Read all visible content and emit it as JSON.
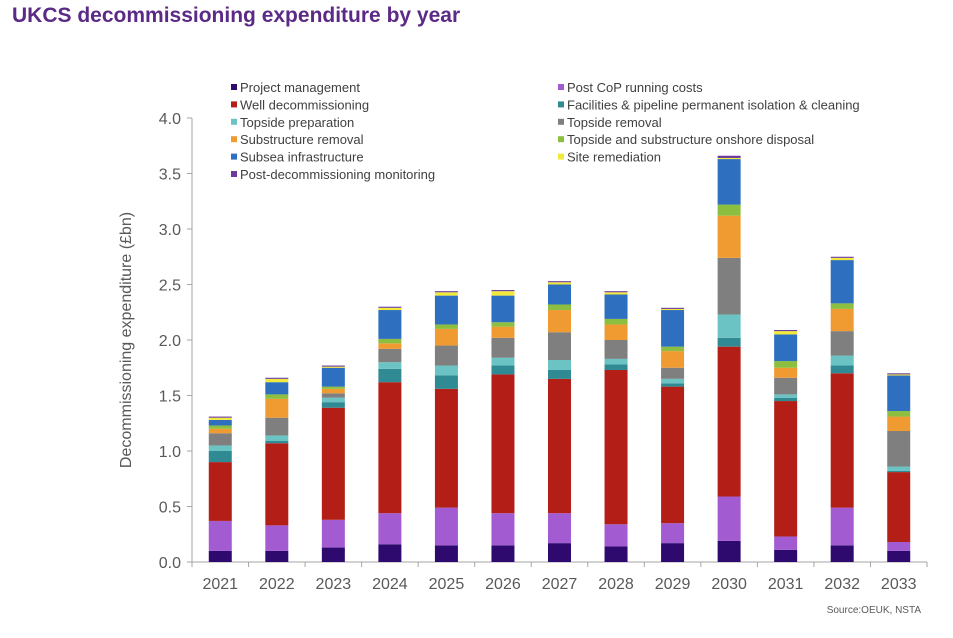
{
  "page": {
    "title": "UKCS decommissioning expenditure by year",
    "source": "Source:OEUK, NSTA"
  },
  "chart_data": {
    "type": "bar",
    "stacked": true,
    "title": "UKCS decommissioning expenditure by year",
    "xlabel": "",
    "ylabel": "Decommissioning expenditure (£bn)",
    "ylim": [
      0,
      4.0
    ],
    "yticks": [
      "0.0",
      "0.5",
      "1.0",
      "1.5",
      "2.0",
      "2.5",
      "3.0",
      "3.5",
      "4.0"
    ],
    "ytick_values": [
      0,
      0.5,
      1.0,
      1.5,
      2.0,
      2.5,
      3.0,
      3.5,
      4.0
    ],
    "grid": false,
    "legend_position": "top",
    "categories": [
      "2021",
      "2022",
      "2023",
      "2024",
      "2025",
      "2026",
      "2027",
      "2028",
      "2029",
      "2030",
      "2031",
      "2032",
      "2033"
    ],
    "series": [
      {
        "name": "Project management",
        "color": "#2e0a6e",
        "values": [
          0.1,
          0.1,
          0.13,
          0.16,
          0.15,
          0.15,
          0.17,
          0.14,
          0.17,
          0.19,
          0.11,
          0.15,
          0.1
        ]
      },
      {
        "name": "Post CoP running costs",
        "color": "#a35bd1",
        "values": [
          0.27,
          0.23,
          0.25,
          0.28,
          0.34,
          0.29,
          0.27,
          0.2,
          0.18,
          0.4,
          0.12,
          0.34,
          0.08
        ]
      },
      {
        "name": "Well decommissioning",
        "color": "#b31f16",
        "values": [
          0.53,
          0.74,
          1.01,
          1.18,
          1.07,
          1.25,
          1.21,
          1.39,
          1.23,
          1.35,
          1.22,
          1.21,
          0.63
        ]
      },
      {
        "name": "Facilities & pipeline permanent isolation & cleaning",
        "color": "#2f8a93",
        "values": [
          0.1,
          0.02,
          0.05,
          0.12,
          0.12,
          0.08,
          0.08,
          0.05,
          0.03,
          0.08,
          0.03,
          0.07,
          0.01
        ]
      },
      {
        "name": "Topside preparation",
        "color": "#6cc3c4",
        "values": [
          0.05,
          0.05,
          0.04,
          0.06,
          0.09,
          0.07,
          0.09,
          0.05,
          0.04,
          0.21,
          0.03,
          0.09,
          0.04
        ]
      },
      {
        "name": "Topside removal",
        "color": "#7f7f7f",
        "values": [
          0.11,
          0.16,
          0.04,
          0.12,
          0.18,
          0.18,
          0.25,
          0.17,
          0.1,
          0.51,
          0.15,
          0.22,
          0.32
        ]
      },
      {
        "name": "Substructure removal",
        "color": "#ef9b32",
        "values": [
          0.04,
          0.17,
          0.04,
          0.05,
          0.15,
          0.1,
          0.2,
          0.14,
          0.15,
          0.38,
          0.09,
          0.2,
          0.13
        ]
      },
      {
        "name": "Topside and substructure onshore disposal",
        "color": "#8cbf3f",
        "values": [
          0.03,
          0.04,
          0.02,
          0.04,
          0.04,
          0.04,
          0.05,
          0.05,
          0.04,
          0.1,
          0.06,
          0.05,
          0.05
        ]
      },
      {
        "name": "Subsea infrastructure",
        "color": "#2f6fbf",
        "values": [
          0.05,
          0.11,
          0.17,
          0.26,
          0.26,
          0.24,
          0.18,
          0.22,
          0.33,
          0.41,
          0.24,
          0.39,
          0.32
        ]
      },
      {
        "name": "Site remediation",
        "color": "#f2ea3b",
        "values": [
          0.02,
          0.03,
          0.01,
          0.02,
          0.03,
          0.04,
          0.02,
          0.02,
          0.01,
          0.01,
          0.03,
          0.02,
          0.01
        ]
      },
      {
        "name": "Post-decommissioning monitoring",
        "color": "#6b3a9e",
        "values": [
          0.01,
          0.01,
          0.01,
          0.01,
          0.01,
          0.01,
          0.01,
          0.01,
          0.01,
          0.02,
          0.01,
          0.01,
          0.01
        ]
      }
    ],
    "legend_layout": {
      "left_column": [
        "Project management",
        "Well decommissioning",
        "Topside preparation",
        "Substructure removal",
        "Subsea infrastructure",
        "Post-decommissioning monitoring"
      ],
      "right_column": [
        "Post CoP running costs",
        "Facilities & pipeline permanent isolation & cleaning",
        "Topside removal",
        "Topside and substructure onshore disposal",
        "Site remediation"
      ]
    }
  }
}
